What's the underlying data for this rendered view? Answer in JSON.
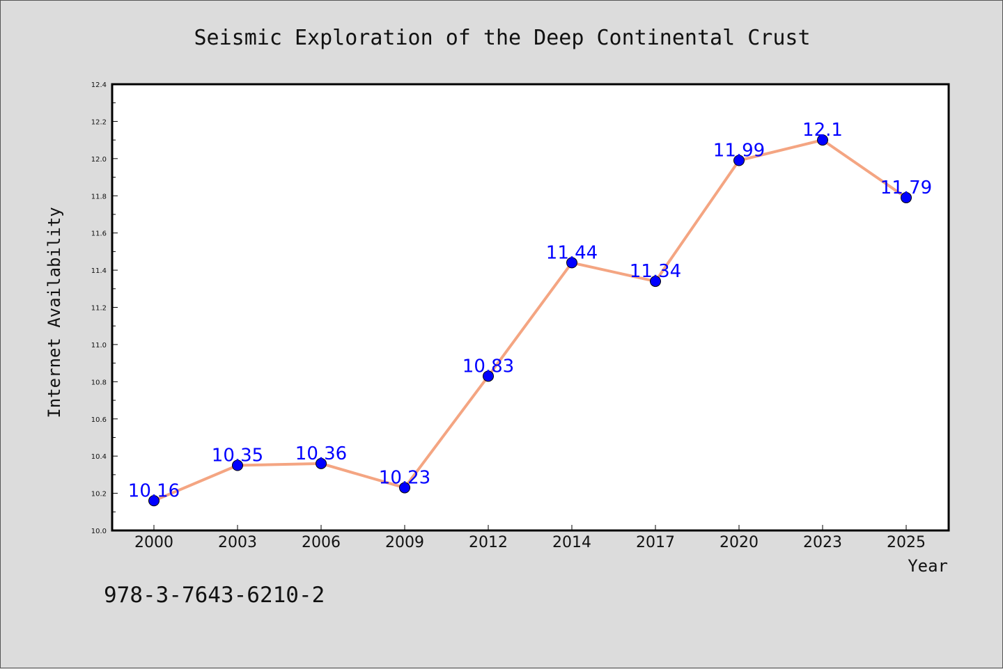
{
  "chart_data": {
    "type": "line",
    "title": "Seismic Exploration of the Deep Continental Crust",
    "xlabel": "Year",
    "ylabel": "Internet Availability",
    "categories": [
      "2000",
      "2003",
      "2006",
      "2009",
      "2012",
      "2014",
      "2017",
      "2020",
      "2023",
      "2025"
    ],
    "series": [
      {
        "values": [
          10.16,
          10.35,
          10.36,
          10.23,
          10.83,
          11.44,
          11.34,
          11.99,
          12.1,
          11.79
        ],
        "data_labels": [
          "10.16",
          "10.35",
          "10.36",
          "10.23",
          "10.83",
          "11.44",
          "11.34",
          "11.99",
          "12.1",
          "11.79"
        ],
        "line_color": "#f4a582",
        "marker_color": "#0000ff",
        "label_color": "#0000ff"
      }
    ],
    "ylim": [
      10.0,
      12.4
    ],
    "yticks": [
      "10.0",
      "10.2",
      "10.4",
      "10.6",
      "10.8",
      "11.0",
      "11.2",
      "11.4",
      "11.6",
      "11.8",
      "12.0",
      "12.2",
      "12.4"
    ],
    "grid": false,
    "legend": "none",
    "plot_background": "#ffffff",
    "page_background": "#dcdcdc"
  },
  "footer": {
    "isbn": "978-3-7643-6210-2"
  }
}
